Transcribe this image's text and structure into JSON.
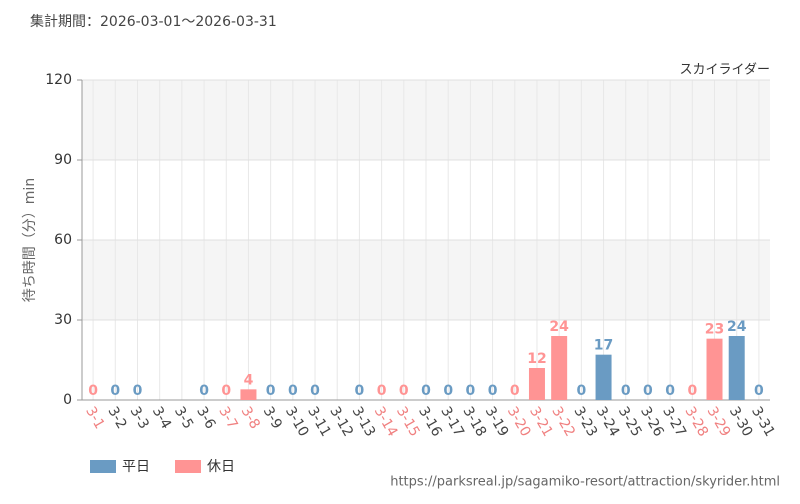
{
  "header": {
    "period": "集計期間：2026-03-01～2026-03-31",
    "url": "https://parksreal.jp/sagamiko-resort/attraction/skyrider.html"
  },
  "chart_data": {
    "type": "bar",
    "title": "スカイライダー",
    "y_label": "待ち時間（分）min",
    "categories": [
      "3-1",
      "3-2",
      "3-3",
      "3-4",
      "3-5",
      "3-6",
      "3-7",
      "3-8",
      "3-9",
      "3-10",
      "3-11",
      "3-12",
      "3-13",
      "3-14",
      "3-15",
      "3-16",
      "3-17",
      "3-18",
      "3-19",
      "3-20",
      "3-21",
      "3-22",
      "3-23",
      "3-24",
      "3-25",
      "3-26",
      "3-27",
      "3-28",
      "3-29",
      "3-30",
      "3-31"
    ],
    "label_colors": [
      "#f08080",
      "#444444",
      "#444444",
      "#444444",
      "#444444",
      "#444444",
      "#f08080",
      "#f08080",
      "#444444",
      "#444444",
      "#444444",
      "#444444",
      "#444444",
      "#f08080",
      "#f08080",
      "#444444",
      "#444444",
      "#444444",
      "#444444",
      "#f08080",
      "#f08080",
      "#f08080",
      "#444444",
      "#444444",
      "#444444",
      "#444444",
      "#444444",
      "#f08080",
      "#f08080",
      "#444444",
      "#444444"
    ],
    "series": [
      {
        "name": "平日",
        "color": "#6a9bc3",
        "values": [
          null,
          0,
          0,
          null,
          null,
          0,
          null,
          null,
          0,
          0,
          0,
          null,
          0,
          null,
          null,
          0,
          0,
          0,
          0,
          null,
          null,
          null,
          0,
          17,
          0,
          0,
          0,
          null,
          null,
          24,
          0
        ]
      },
      {
        "name": "休日",
        "color": "#ff9494",
        "values": [
          0,
          null,
          null,
          null,
          null,
          null,
          0,
          4,
          null,
          null,
          null,
          null,
          null,
          0,
          0,
          null,
          null,
          null,
          null,
          0,
          12,
          24,
          null,
          null,
          null,
          null,
          null,
          0,
          23,
          null,
          null
        ]
      }
    ],
    "ylim": [
      0,
      120
    ],
    "yticks": [
      0,
      30,
      60,
      90,
      120
    ],
    "grid": true
  }
}
